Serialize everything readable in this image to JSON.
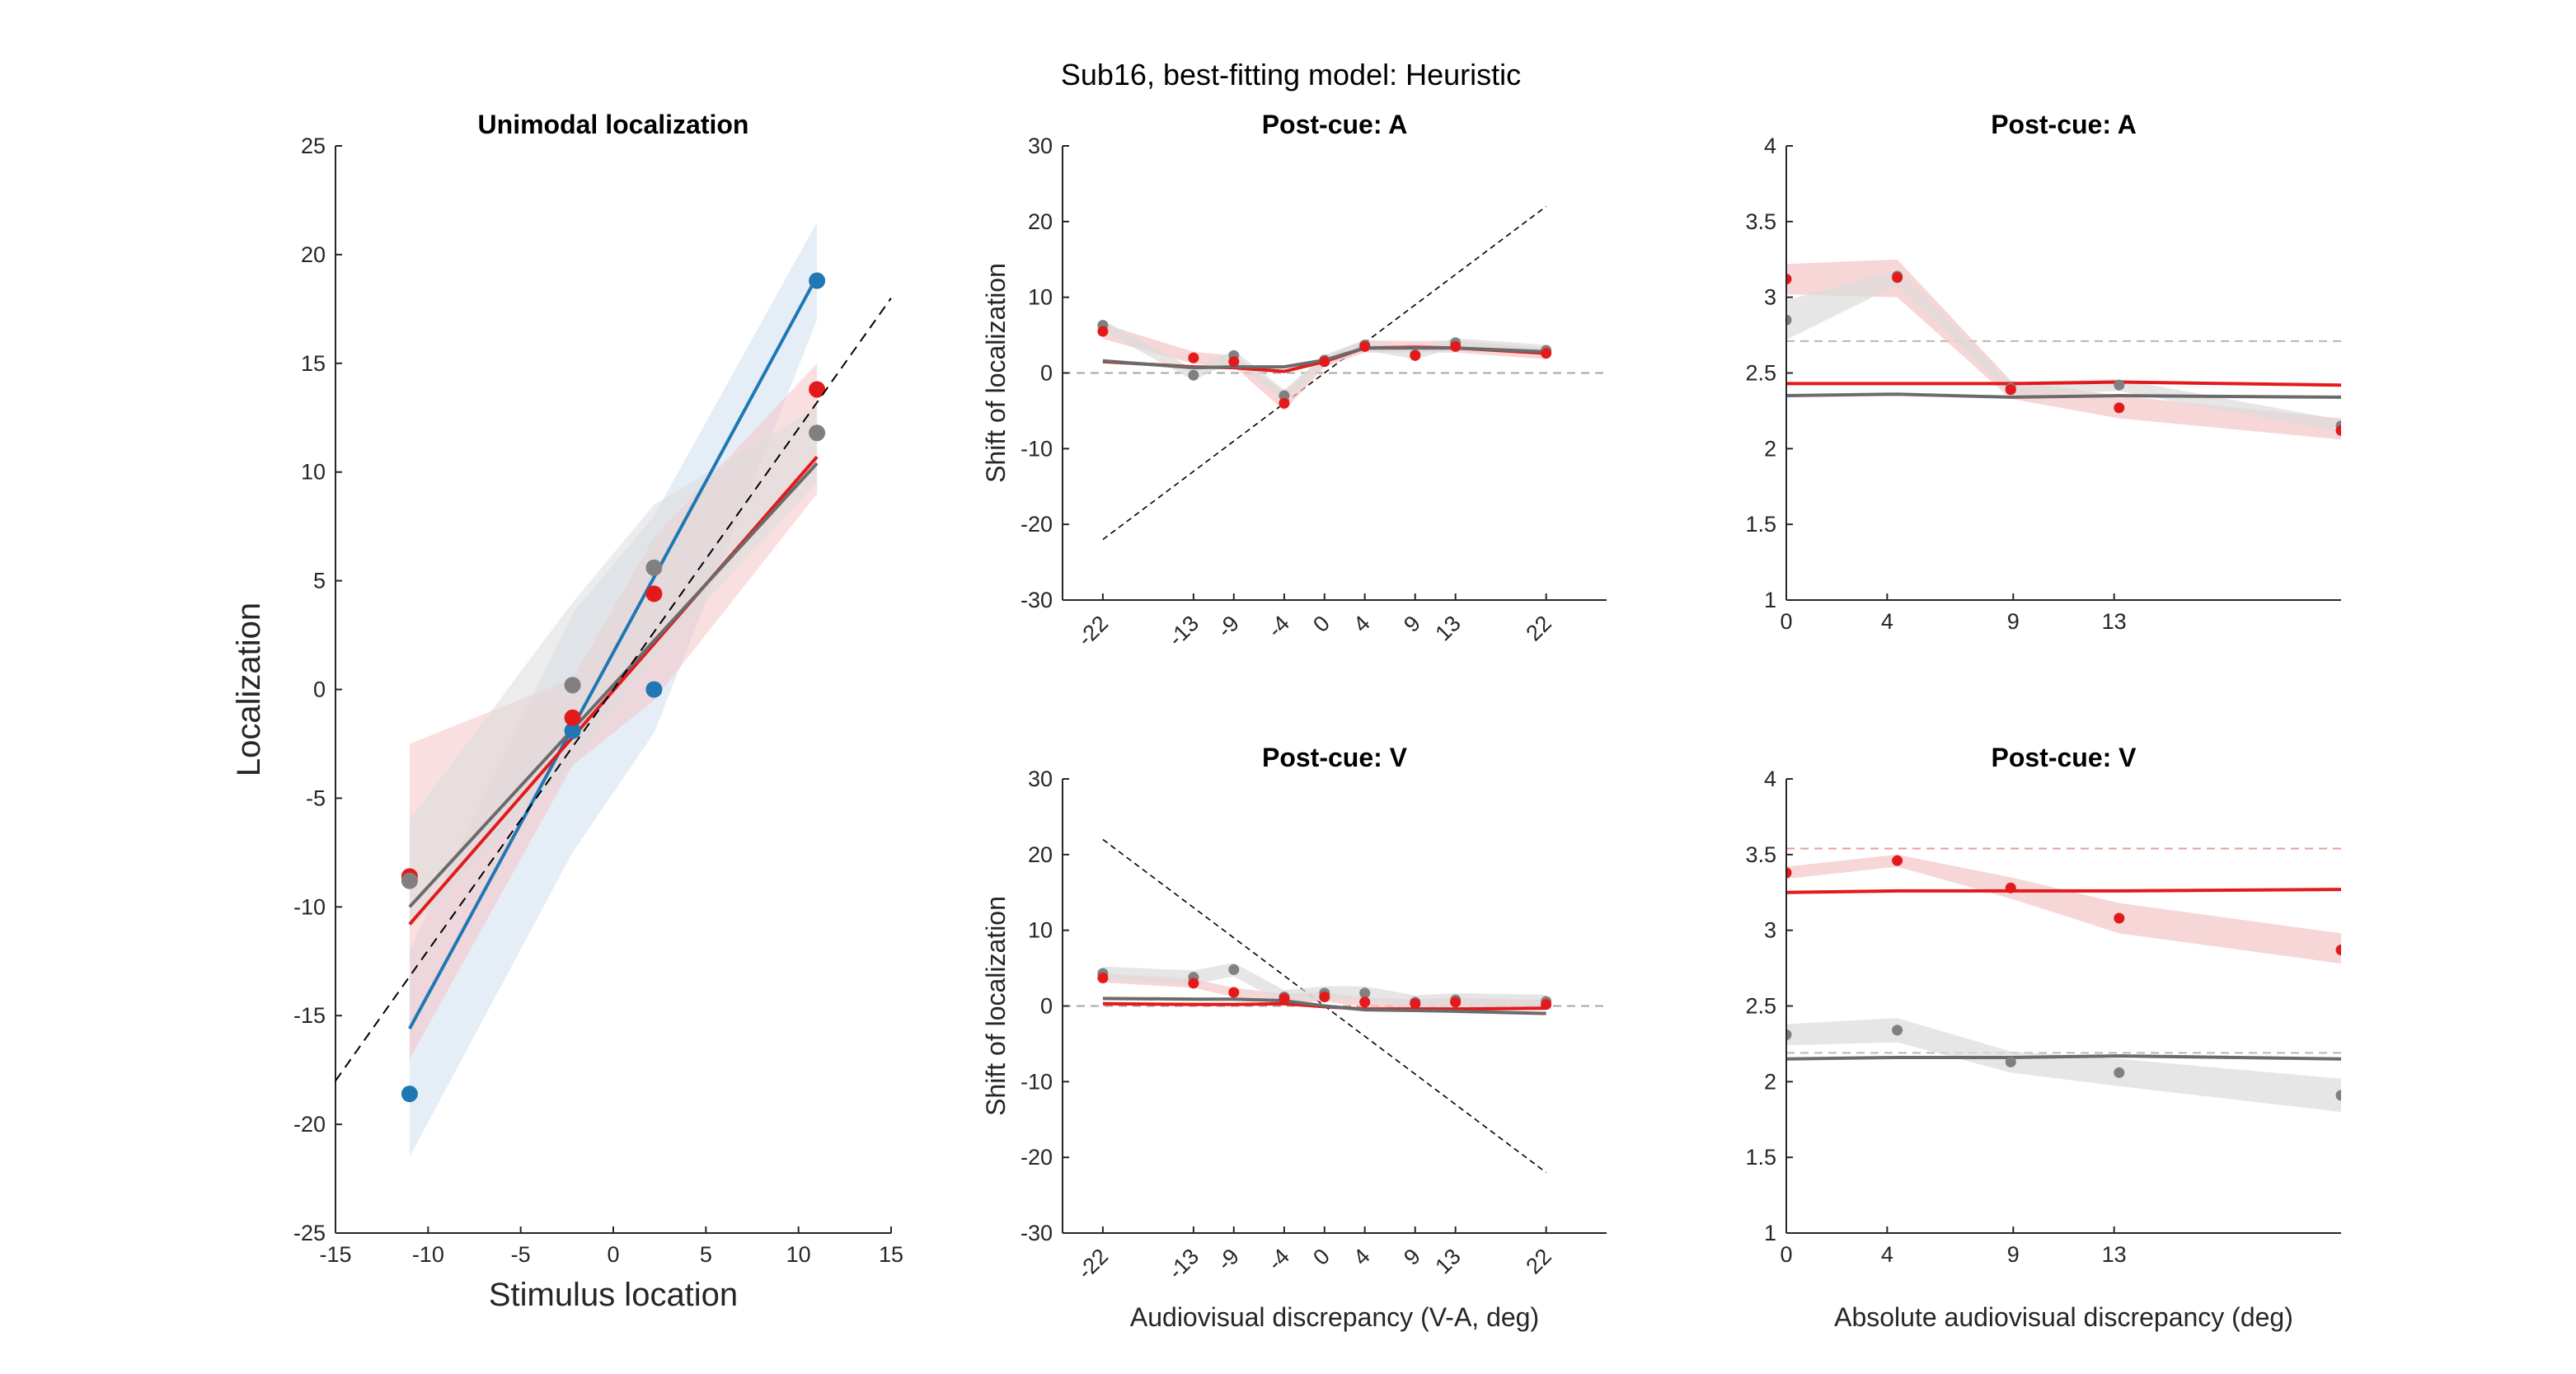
{
  "suptitle": "Sub16, best-fitting model: Heuristic",
  "colors": {
    "auditory": "#e31a1c",
    "visual": "#1f77b4",
    "gray": "#808080",
    "grayLine": "#6b6b6b"
  },
  "chart_data": [
    {
      "id": "unimodal",
      "type": "scatter",
      "title": "Unimodal localization",
      "xlabel": "Stimulus location",
      "ylabel": "Localization",
      "xlim": [
        -15,
        15
      ],
      "ylim": [
        -25,
        25
      ],
      "xticks": [
        -15,
        -10,
        -5,
        0,
        5,
        10,
        15
      ],
      "yticks": [
        -25,
        -20,
        -15,
        -10,
        -5,
        0,
        5,
        10,
        15,
        20,
        25
      ],
      "identity_line": true,
      "series": [
        {
          "color": "blue",
          "points": [
            [
              -11,
              -18.6
            ],
            [
              -2.2,
              -1.9
            ],
            [
              2.2,
              0.0
            ],
            [
              11,
              18.8
            ]
          ],
          "fit": [
            [
              -11,
              -15.6
            ],
            [
              11,
              19.0
            ]
          ],
          "band_upper": [
            [
              -11,
              -12.0
            ],
            [
              -2.2,
              3.5
            ],
            [
              2.2,
              8.0
            ],
            [
              11,
              21.5
            ]
          ],
          "band_lower": [
            [
              -11,
              -21.5
            ],
            [
              -2.2,
              -7.5
            ],
            [
              2.2,
              -2.0
            ],
            [
              11,
              17.0
            ]
          ]
        },
        {
          "color": "red",
          "points": [
            [
              -11,
              -8.6
            ],
            [
              -2.2,
              -1.3
            ],
            [
              2.2,
              4.4
            ],
            [
              11,
              13.8
            ]
          ],
          "fit": [
            [
              -11,
              -10.8
            ],
            [
              11,
              10.7
            ]
          ],
          "band_upper": [
            [
              -11,
              -2.5
            ],
            [
              -2.2,
              0.5
            ],
            [
              2.2,
              7.0
            ],
            [
              11,
              15.0
            ]
          ],
          "band_lower": [
            [
              -11,
              -17.0
            ],
            [
              -2.2,
              -3.5
            ],
            [
              2.2,
              -0.5
            ],
            [
              11,
              9.0
            ]
          ]
        },
        {
          "color": "gray",
          "points": [
            [
              -11,
              -8.8
            ],
            [
              -2.2,
              0.2
            ],
            [
              2.2,
              5.6
            ],
            [
              11,
              11.8
            ]
          ],
          "fit": [
            [
              -11,
              -10.0
            ],
            [
              11,
              10.4
            ]
          ],
          "band_upper": [
            [
              -11,
              -6.0
            ],
            [
              -2.2,
              4.0
            ],
            [
              2.2,
              8.5
            ],
            [
              11,
              13.0
            ]
          ],
          "band_lower": [
            [
              -11,
              -11.0
            ],
            [
              -2.2,
              -3.5
            ],
            [
              2.2,
              1.5
            ],
            [
              11,
              9.5
            ]
          ]
        }
      ]
    },
    {
      "id": "shiftA",
      "type": "line",
      "title": "Post-cue: A",
      "ylabel": "Shift of localization",
      "xlabel": "",
      "x": [
        -22,
        -13,
        -9,
        -4,
        0,
        4,
        9,
        13,
        22
      ],
      "xtick_labels": [
        "-22",
        "-13",
        "-9",
        "-4",
        "0",
        "4",
        "9",
        "13",
        "22"
      ],
      "xlim": [
        -26,
        28
      ],
      "ylim": [
        -30,
        30
      ],
      "yticks": [
        -30,
        -20,
        -10,
        0,
        10,
        20,
        30
      ],
      "diagonal": [
        [
          -22,
          -22
        ],
        [
          22,
          22
        ]
      ],
      "series": [
        {
          "color": "red",
          "points": [
            5.5,
            2.0,
            1.5,
            -4.0,
            1.5,
            3.5,
            2.3,
            3.5,
            2.6
          ],
          "model": [
            [
              -22,
              1.5
            ],
            [
              -13,
              0.8
            ],
            [
              -9,
              0.7
            ],
            [
              -4,
              0.2
            ],
            [
              0,
              1.5
            ],
            [
              4,
              3.3
            ],
            [
              9,
              3.4
            ],
            [
              13,
              3.3
            ],
            [
              22,
              2.6
            ]
          ],
          "band": [
            [
              -22,
              6.5,
              4.5
            ],
            [
              -13,
              2.8,
              1.2
            ],
            [
              -9,
              2.3,
              0.9
            ],
            [
              -4,
              -2.5,
              -5.0
            ],
            [
              0,
              2.2,
              0.8
            ],
            [
              4,
              4.3,
              2.7
            ],
            [
              9,
              4.2,
              2.7
            ],
            [
              13,
              4.3,
              2.7
            ],
            [
              22,
              3.3,
              1.8
            ]
          ]
        },
        {
          "color": "gray",
          "points": [
            6.3,
            -0.3,
            2.3,
            -3.0,
            1.7,
            3.7,
            2.4,
            4.0,
            3.0
          ],
          "model": [
            [
              -22,
              1.6
            ],
            [
              -13,
              0.7
            ],
            [
              -9,
              0.8
            ],
            [
              -4,
              0.8
            ],
            [
              0,
              1.7
            ],
            [
              4,
              3.3
            ],
            [
              9,
              3.3
            ],
            [
              13,
              3.3
            ],
            [
              22,
              2.8
            ]
          ],
          "band": [
            [
              -22,
              7.0,
              5.6
            ],
            [
              -13,
              0.5,
              -1.0
            ],
            [
              -9,
              3.0,
              1.6
            ],
            [
              -4,
              -2.2,
              -3.6
            ],
            [
              0,
              2.4,
              1.0
            ],
            [
              4,
              4.4,
              3.0
            ],
            [
              9,
              3.1,
              1.8
            ],
            [
              13,
              4.6,
              3.3
            ],
            [
              22,
              3.7,
              2.3
            ]
          ]
        }
      ]
    },
    {
      "id": "varA",
      "type": "line",
      "title": "Post-cue: A",
      "xlabel": "",
      "ylabel": "",
      "x": [
        0,
        4.4,
        8.9,
        13.2,
        22
      ],
      "xticks": [
        0,
        4,
        9,
        13
      ],
      "xlim": [
        0,
        22
      ],
      "ylim": [
        1,
        4
      ],
      "yticks": [
        1,
        1.5,
        2,
        2.5,
        3,
        3.5,
        4
      ],
      "ytick_labels": [
        "1",
        "1.5",
        "2",
        "2.5",
        "3",
        "3.5",
        "4"
      ],
      "reference_lines": [
        {
          "color": "gray",
          "y": 2.71
        }
      ],
      "series": [
        {
          "color": "red",
          "points": [
            3.12,
            3.13,
            2.39,
            2.27,
            2.12
          ],
          "model": [
            [
              0,
              2.43
            ],
            [
              9,
              2.43
            ],
            [
              13.2,
              2.44
            ],
            [
              22,
              2.42
            ]
          ],
          "band": [
            [
              0,
              3.22,
              3.02
            ],
            [
              4.4,
              3.25,
              3.0
            ],
            [
              8.9,
              2.45,
              2.33
            ],
            [
              13.2,
              2.35,
              2.2
            ],
            [
              22,
              2.2,
              2.06
            ]
          ]
        },
        {
          "color": "gray",
          "points": [
            2.85,
            3.14,
            2.4,
            2.42,
            2.15
          ],
          "model": [
            [
              0,
              2.35
            ],
            [
              4.4,
              2.36
            ],
            [
              8.9,
              2.34
            ],
            [
              13.2,
              2.35
            ],
            [
              22,
              2.34
            ]
          ],
          "band": [
            [
              0,
              2.98,
              2.72
            ],
            [
              4.4,
              3.18,
              3.08
            ],
            [
              8.9,
              2.44,
              2.36
            ],
            [
              13.2,
              2.46,
              2.38
            ],
            [
              22,
              2.19,
              2.11
            ]
          ]
        }
      ]
    },
    {
      "id": "shiftV",
      "type": "line",
      "title": "Post-cue: V",
      "ylabel": "Shift of localization",
      "xlabel": "Audiovisual discrepancy (V-A, deg)",
      "x": [
        -22,
        -13,
        -9,
        -4,
        0,
        4,
        9,
        13,
        22
      ],
      "xtick_labels": [
        "-22",
        "-13",
        "-9",
        "-4",
        "0",
        "4",
        "9",
        "13",
        "22"
      ],
      "xlim": [
        -26,
        28
      ],
      "ylim": [
        -30,
        30
      ],
      "yticks": [
        -30,
        -20,
        -10,
        0,
        10,
        20,
        30
      ],
      "diagonal": [
        [
          -22,
          22
        ],
        [
          22,
          -22
        ]
      ],
      "series": [
        {
          "color": "red",
          "points": [
            3.7,
            3.0,
            1.8,
            1.0,
            1.2,
            0.5,
            0.3,
            0.5,
            0.2
          ],
          "model": [
            [
              -22,
              0.3
            ],
            [
              -13,
              0.2
            ],
            [
              -9,
              0.2
            ],
            [
              -4,
              0.3
            ],
            [
              0,
              -0.1
            ],
            [
              4,
              -0.4
            ],
            [
              9,
              -0.4
            ],
            [
              13,
              -0.4
            ],
            [
              22,
              -0.3
            ]
          ],
          "band": [
            [
              -22,
              4.3,
              3.1
            ],
            [
              -13,
              3.6,
              2.4
            ],
            [
              -9,
              2.4,
              1.2
            ],
            [
              -4,
              1.6,
              0.4
            ],
            [
              0,
              1.8,
              0.6
            ],
            [
              4,
              1.1,
              -0.1
            ],
            [
              9,
              0.9,
              -0.3
            ],
            [
              13,
              1.1,
              -0.1
            ],
            [
              22,
              0.8,
              -0.4
            ]
          ]
        },
        {
          "color": "gray",
          "points": [
            4.3,
            3.8,
            4.8,
            1.2,
            1.7,
            1.7,
            0.5,
            0.8,
            0.6
          ],
          "model": [
            [
              -22,
              1.0
            ],
            [
              -13,
              0.9
            ],
            [
              -9,
              0.9
            ],
            [
              -4,
              0.7
            ],
            [
              0,
              0.0
            ],
            [
              4,
              -0.5
            ],
            [
              9,
              -0.6
            ],
            [
              13,
              -0.7
            ],
            [
              22,
              -1.0
            ]
          ],
          "band": [
            [
              -22,
              5.2,
              3.4
            ],
            [
              -13,
              4.7,
              2.9
            ],
            [
              -9,
              5.7,
              3.9
            ],
            [
              -4,
              2.1,
              0.3
            ],
            [
              0,
              2.6,
              0.8
            ],
            [
              4,
              2.6,
              0.8
            ],
            [
              9,
              1.4,
              -0.4
            ],
            [
              13,
              1.7,
              -0.1
            ],
            [
              22,
              1.5,
              -0.3
            ]
          ]
        }
      ]
    },
    {
      "id": "varV",
      "type": "line",
      "title": "Post-cue: V",
      "xlabel": "Absolute audiovisual discrepancy (deg)",
      "ylabel": "",
      "x": [
        0,
        4.4,
        8.9,
        13.2,
        22
      ],
      "xticks": [
        0,
        4,
        9,
        13
      ],
      "xlim": [
        0,
        22
      ],
      "ylim": [
        1,
        4
      ],
      "yticks": [
        1,
        1.5,
        2,
        2.5,
        3,
        3.5,
        4
      ],
      "ytick_labels": [
        "1",
        "1.5",
        "2",
        "2.5",
        "3",
        "3.5",
        "4"
      ],
      "reference_lines": [
        {
          "color": "red",
          "y": 3.54
        },
        {
          "color": "gray",
          "y": 2.19
        }
      ],
      "series": [
        {
          "color": "red",
          "points": [
            3.38,
            3.46,
            3.28,
            3.08,
            2.87
          ],
          "model": [
            [
              0,
              3.25
            ],
            [
              4.4,
              3.26
            ],
            [
              8.9,
              3.26
            ],
            [
              13.2,
              3.26
            ],
            [
              22,
              3.27
            ]
          ],
          "band": [
            [
              0,
              3.42,
              3.34
            ],
            [
              4.4,
              3.5,
              3.42
            ],
            [
              8.9,
              3.35,
              3.21
            ],
            [
              13.2,
              3.18,
              2.98
            ],
            [
              22,
              2.98,
              2.78
            ]
          ]
        },
        {
          "color": "gray",
          "points": [
            2.31,
            2.34,
            2.13,
            2.06,
            1.91
          ],
          "model": [
            [
              0,
              2.15
            ],
            [
              4.4,
              2.16
            ],
            [
              8.9,
              2.16
            ],
            [
              13.2,
              2.17
            ],
            [
              22,
              2.15
            ]
          ],
          "band": [
            [
              0,
              2.38,
              2.24
            ],
            [
              4.4,
              2.42,
              2.26
            ],
            [
              8.9,
              2.2,
              2.06
            ],
            [
              13.2,
              2.15,
              1.97
            ],
            [
              22,
              2.02,
              1.8
            ]
          ]
        }
      ]
    }
  ]
}
